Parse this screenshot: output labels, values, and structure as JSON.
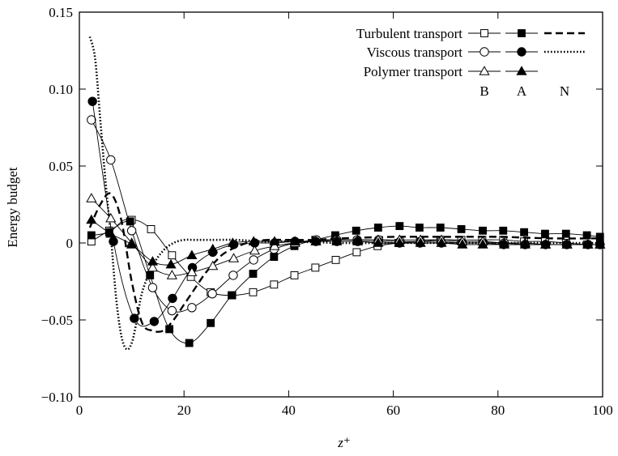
{
  "chart_data": {
    "type": "line",
    "xlabel": "z⁺",
    "ylabel": "Energy budget",
    "xlim": [
      0,
      100
    ],
    "ylim": [
      -0.1,
      0.15
    ],
    "xticks": [
      0,
      20,
      40,
      60,
      80,
      100
    ],
    "xtick_labels": [
      "0",
      "20",
      "40",
      "60",
      "80",
      "100"
    ],
    "yticks": [
      -0.1,
      -0.05,
      0,
      0.05,
      0.1,
      0.15
    ],
    "ytick_labels": [
      "−0.10",
      "−0.05",
      "0",
      "0.05",
      "0.10",
      "0.15"
    ],
    "legend_position": "top-right",
    "legend_rows": [
      "Turbulent transport",
      "Viscous transport",
      "Polymer transport"
    ],
    "legend_columns": [
      "B",
      "A",
      "N"
    ],
    "series": [
      {
        "name": "Turbulent transport",
        "case": "B",
        "marker": "open-square",
        "line": "solid",
        "x": [
          2.3,
          5.7,
          10,
          13.7,
          17.7,
          21.3,
          25.1,
          29.2,
          33.2,
          37.2,
          41.1,
          45.1,
          49,
          53,
          57,
          61,
          65.1,
          69,
          73,
          77,
          81,
          85,
          89,
          93,
          97,
          99.5
        ],
        "y": [
          0.001,
          0.008,
          0.015,
          0.009,
          -0.008,
          -0.022,
          -0.032,
          -0.034,
          -0.032,
          -0.027,
          -0.021,
          -0.016,
          -0.011,
          -0.006,
          -0.002,
          0,
          0.001,
          0.002,
          0.002,
          0.002,
          0.002,
          0.001,
          0.001,
          0,
          -0.001,
          -0.001
        ]
      },
      {
        "name": "Turbulent transport",
        "case": "A",
        "marker": "filled-square",
        "line": "solid",
        "x": [
          2.3,
          5.7,
          9.7,
          13.5,
          17.2,
          21,
          25.1,
          29.1,
          33.2,
          37.2,
          41.1,
          45.1,
          48.9,
          52.9,
          57.1,
          61.2,
          65,
          69,
          73,
          77.1,
          81,
          85,
          89,
          93,
          97,
          99.5
        ],
        "y": [
          0.005,
          0.007,
          0.014,
          -0.021,
          -0.056,
          -0.065,
          -0.052,
          -0.034,
          -0.02,
          -0.009,
          -0.002,
          0.002,
          0.005,
          0.008,
          0.01,
          0.011,
          0.01,
          0.01,
          0.009,
          0.008,
          0.008,
          0.007,
          0.006,
          0.006,
          0.005,
          0.004
        ]
      },
      {
        "name": "Turbulent transport",
        "case": "N",
        "marker": "none",
        "line": "dashed",
        "x": [
          2,
          4,
          6,
          8,
          10,
          12,
          14,
          16,
          18,
          20,
          22,
          24,
          26,
          28,
          32,
          36,
          40,
          45,
          50,
          60,
          70,
          80,
          90,
          100
        ],
        "y": [
          0.01,
          0.025,
          0.032,
          0.015,
          -0.025,
          -0.052,
          -0.057,
          -0.057,
          -0.05,
          -0.04,
          -0.03,
          -0.02,
          -0.012,
          -0.006,
          0,
          0.002,
          0.002,
          0.002,
          0.003,
          0.004,
          0.004,
          0.004,
          0.003,
          0.003
        ]
      },
      {
        "name": "Viscous transport",
        "case": "B",
        "marker": "open-circle",
        "line": "solid",
        "x": [
          2.3,
          6,
          10,
          14,
          17.7,
          21.5,
          25.4,
          29.4,
          33.3,
          37.2,
          41.2,
          45.3,
          49.2,
          53.1,
          57.2,
          61.3,
          65.2,
          69.1,
          73.2,
          77.1,
          81.2,
          85.2,
          89.1,
          93.2,
          97.2,
          99.5
        ],
        "y": [
          0.08,
          0.054,
          0.008,
          -0.029,
          -0.044,
          -0.042,
          -0.033,
          -0.021,
          -0.011,
          -0.004,
          0,
          0.002,
          0.002,
          0.002,
          0.002,
          0.001,
          0.001,
          0.001,
          0,
          0,
          0,
          -0.001,
          -0.001,
          -0.001,
          -0.001,
          -0.001
        ]
      },
      {
        "name": "Viscous transport",
        "case": "A",
        "marker": "filled-circle",
        "line": "solid",
        "x": [
          2.5,
          6.5,
          10.5,
          14.3,
          17.8,
          21.6,
          25.5,
          29.5,
          33.5,
          37.3,
          41.2,
          45.2,
          49.2,
          53.2,
          57.1,
          61.2,
          65.1,
          69.2,
          73.1,
          77.2,
          81.1,
          85.2,
          89.1,
          93.1,
          97.2,
          99.5
        ],
        "y": [
          0.092,
          0.001,
          -0.049,
          -0.051,
          -0.036,
          -0.016,
          -0.006,
          -0.001,
          0,
          0,
          0.001,
          0.001,
          0.001,
          0.001,
          0.001,
          0,
          0,
          0,
          0,
          0,
          -0.001,
          -0.001,
          -0.001,
          -0.001,
          -0.001,
          -0.001
        ]
      },
      {
        "name": "Viscous transport",
        "case": "N",
        "marker": "none",
        "line": "dotted",
        "x": [
          2,
          3,
          4,
          5,
          6,
          7,
          8,
          9,
          10,
          11,
          12,
          14,
          16,
          18,
          20,
          22,
          25,
          30,
          35,
          40,
          50,
          60,
          70,
          80,
          90,
          100
        ],
        "y": [
          0.134,
          0.12,
          0.08,
          0.04,
          0.005,
          -0.035,
          -0.06,
          -0.069,
          -0.065,
          -0.05,
          -0.032,
          -0.015,
          -0.005,
          0,
          0.002,
          0.002,
          0.002,
          0.002,
          0.001,
          0.001,
          0,
          0,
          0,
          0,
          0,
          0
        ]
      },
      {
        "name": "Polymer transport",
        "case": "B",
        "marker": "open-triangle",
        "line": "solid",
        "x": [
          2.3,
          6,
          10,
          14,
          17.7,
          21.5,
          25.5,
          29.5,
          33.5,
          37.3,
          41.2,
          45.2,
          49.2,
          53.2,
          57.1,
          61.2,
          65.2,
          69.2,
          73.2,
          77.1,
          81.2,
          85.2,
          89.1,
          93.2,
          97.2,
          99.5
        ],
        "y": [
          0.029,
          0.016,
          0,
          -0.016,
          -0.021,
          -0.019,
          -0.015,
          -0.01,
          -0.005,
          -0.002,
          0,
          0.001,
          0.002,
          0.002,
          0.002,
          0.002,
          0.002,
          0.002,
          0.001,
          0.001,
          0,
          0,
          -0.001,
          -0.001,
          -0.001,
          -0.001
        ]
      },
      {
        "name": "Polymer transport",
        "case": "A",
        "marker": "filled-triangle",
        "line": "solid",
        "x": [
          2.3,
          6,
          10,
          14,
          17.5,
          21.5,
          25.5,
          29.3,
          33.3,
          37.3,
          41.2,
          45.2,
          49.2,
          53.2,
          57.1,
          61.2,
          65.2,
          69.2,
          73.2,
          77.1,
          81.2,
          85.2,
          89.1,
          93.2,
          97.2,
          99.5
        ],
        "y": [
          0.015,
          0.006,
          -0.001,
          -0.012,
          -0.014,
          -0.008,
          -0.004,
          0,
          0.001,
          0.001,
          0.001,
          0.001,
          0.001,
          0.001,
          0,
          0,
          0,
          0,
          -0.001,
          -0.001,
          -0.001,
          -0.001,
          -0.001,
          -0.001,
          -0.001,
          -0.001
        ]
      }
    ]
  }
}
